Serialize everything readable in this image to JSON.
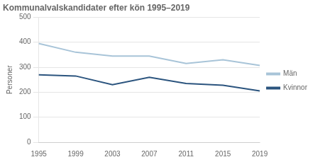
{
  "chart_data": {
    "type": "line",
    "title": "Kommunalvalskandidater efter kön 1995–2019",
    "y_label": "Personer",
    "categories": [
      "1995",
      "1999",
      "2003",
      "2007",
      "2011",
      "2015",
      "2019"
    ],
    "series": [
      {
        "name": "Män",
        "color": "#a8c4d8",
        "values": [
          395,
          360,
          345,
          345,
          315,
          330,
          307
        ]
      },
      {
        "name": "Kvinnor",
        "color": "#2b547e",
        "values": [
          270,
          265,
          230,
          260,
          235,
          228,
          205
        ]
      }
    ],
    "ylim": [
      0,
      500
    ],
    "yticks": [
      0,
      100,
      200,
      300,
      400,
      500
    ],
    "grid": true,
    "legend": "right"
  }
}
